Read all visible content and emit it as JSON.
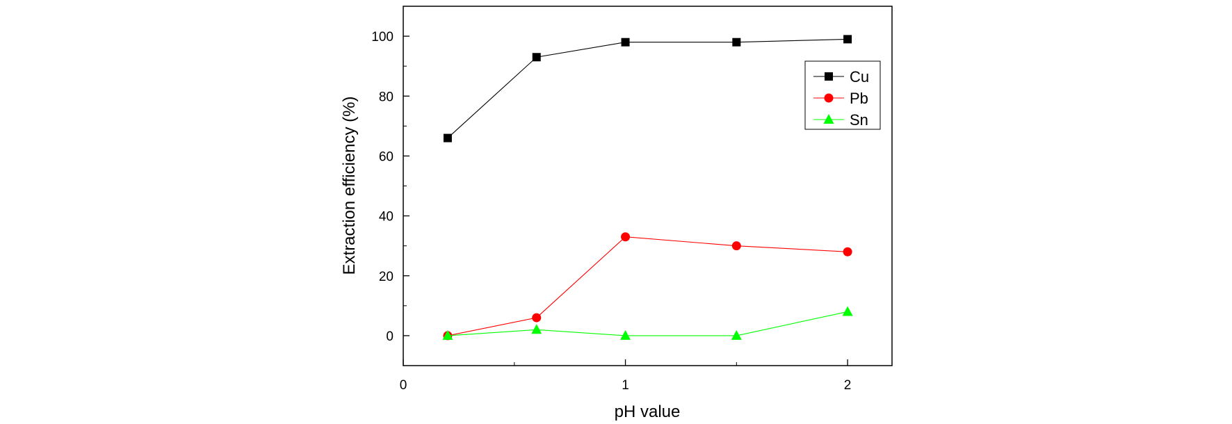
{
  "chart_data": {
    "type": "line",
    "title": "",
    "xlabel": "pH value",
    "ylabel": "Extraction efficiency (%)",
    "xlim": [
      0,
      2.2
    ],
    "ylim": [
      -10,
      110
    ],
    "xticks": [
      0,
      1,
      2
    ],
    "xtick_labels": [
      "0",
      "1",
      "2"
    ],
    "yticks": [
      0,
      20,
      40,
      60,
      80,
      100
    ],
    "ytick_labels": [
      "0",
      "20",
      "40",
      "60",
      "80",
      "100"
    ],
    "grid": false,
    "legend_position": "top-right",
    "series": [
      {
        "name": "Cu",
        "color": "#000000",
        "marker": "square",
        "x": [
          0.2,
          0.6,
          1.0,
          1.5,
          2.0
        ],
        "y": [
          66,
          93,
          98,
          98,
          99
        ]
      },
      {
        "name": "Pb",
        "color": "#ff0000",
        "marker": "circle",
        "x": [
          0.2,
          0.6,
          1.0,
          1.5,
          2.0
        ],
        "y": [
          0,
          6,
          33,
          30,
          28
        ]
      },
      {
        "name": "Sn",
        "color": "#00ff00",
        "marker": "triangle",
        "x": [
          0.2,
          0.6,
          1.0,
          1.5,
          2.0
        ],
        "y": [
          0,
          2,
          0,
          0,
          8
        ]
      }
    ]
  }
}
